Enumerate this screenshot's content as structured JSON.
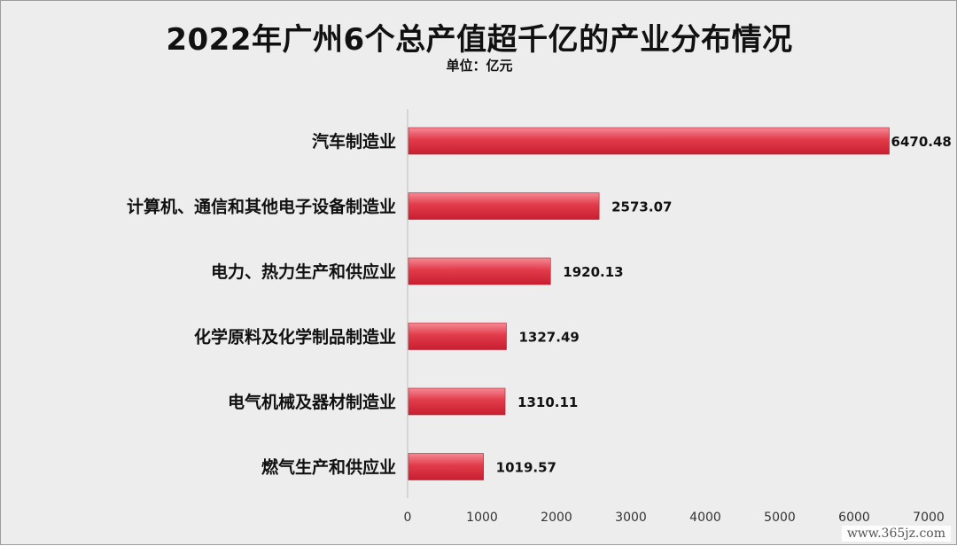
{
  "chart_data": {
    "type": "bar",
    "orientation": "horizontal",
    "title": "2022年广州6个总产值超千亿的产业分布情况",
    "subtitle": "单位：亿元",
    "categories": [
      "汽车制造业",
      "计算机、通信和其他电子设备制造业",
      "电力、热力生产和供应业",
      "化学原料及化学制品制造业",
      "电气机械及器材制造业",
      "燃气生产和供应业"
    ],
    "values": [
      6470.48,
      2573.07,
      1920.13,
      1327.49,
      1310.11,
      1019.57
    ],
    "value_labels": [
      "6470.48",
      "2573.07",
      "1920.13",
      "1327.49",
      "1310.11",
      "1019.57"
    ],
    "xlim": [
      0,
      7000
    ],
    "xticks": [
      "0",
      "1000",
      "2000",
      "3000",
      "4000",
      "5000",
      "6000",
      "7000"
    ],
    "grid": false,
    "bar_color": "#e5404f"
  },
  "watermark": "www.365jz.com"
}
